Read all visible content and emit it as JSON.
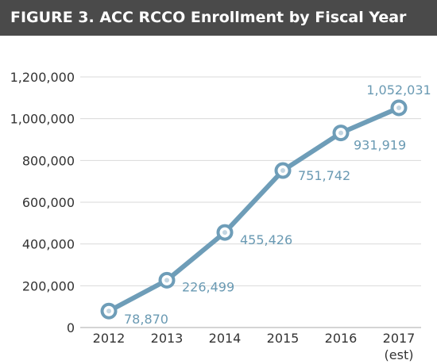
{
  "title": "FIGURE 3. ACC RCCO Enrollment by Fiscal Year",
  "colors": {
    "title_bg": "#4a4a4a",
    "line": "#6e9db8",
    "data_label": "#6a9ab3",
    "grid": "#d9d9d9"
  },
  "chart_data": {
    "type": "line",
    "title": "FIGURE 3. ACC RCCO Enrollment by Fiscal Year",
    "xlabel": "",
    "ylabel": "",
    "categories": [
      "2012",
      "2013",
      "2014",
      "2015",
      "2016",
      "2017"
    ],
    "category_sublabels": [
      "",
      "",
      "",
      "",
      "",
      "(est)"
    ],
    "series": [
      {
        "values": [
          78870,
          226499,
          455426,
          751742,
          931919,
          1052031
        ],
        "labels": [
          "78,870",
          "226,499",
          "455,426",
          "751,742",
          "931,919",
          "1,052,031"
        ]
      }
    ],
    "ylim": [
      0,
      1200000
    ],
    "yticks": [
      0,
      200000,
      400000,
      600000,
      800000,
      1000000,
      1200000
    ],
    "ytick_labels": [
      "0",
      "200,000",
      "400,000",
      "600,000",
      "800,000",
      "1,000,000",
      "1,200,000"
    ],
    "grid": true,
    "legend": "none"
  }
}
